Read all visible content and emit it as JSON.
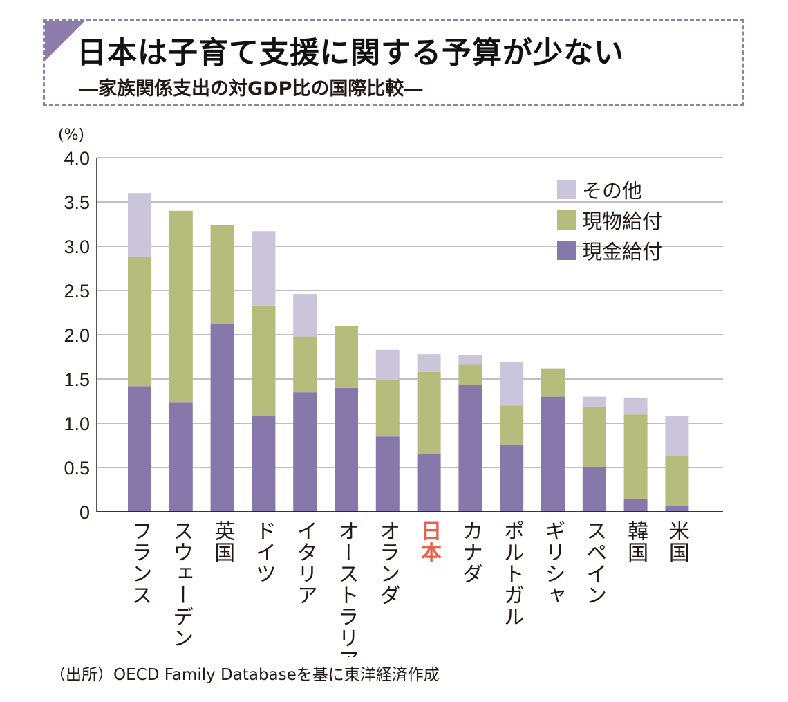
{
  "header": {
    "title": "日本は子育て支援に関する予算が少ない",
    "subtitle": "―家族関係支出の対GDP比の国際比較―"
  },
  "source": "（出所）OECD Family Databaseを基に東洋経済作成",
  "colors": {
    "cash": "#8678ab",
    "in_kind": "#b6bc7b",
    "other": "#cbc5dc",
    "highlight": "#e8604c",
    "grid": "#9a9a9a",
    "frame": "#8f80aa"
  },
  "chart_data": {
    "type": "bar",
    "stacked": true,
    "title": "日本は子育て支援に関する予算が少ない",
    "subtitle": "―家族関係支出の対GDP比の国際比較―",
    "y_unit": "(%)",
    "ylim": [
      0,
      4.0
    ],
    "yticks": [
      "4.0",
      "3.5",
      "3.0",
      "2.5",
      "2.0",
      "1.5",
      "1.0",
      "0.5",
      "0"
    ],
    "ytick_values": [
      4.0,
      3.5,
      3.0,
      2.5,
      2.0,
      1.5,
      1.0,
      0.5,
      0
    ],
    "categories": [
      "フランス",
      "スウェーデン",
      "英国",
      "ドイツ",
      "イタリア",
      "オーストラリア",
      "オランダ",
      "日本",
      "カナダ",
      "ポルトガル",
      "ギリシャ",
      "スペイン",
      "韓国",
      "米国"
    ],
    "highlight_category": "日本",
    "legend_position": "top-right",
    "series": [
      {
        "name": "現金給付",
        "color_key": "cash",
        "values": [
          1.42,
          1.24,
          2.12,
          1.08,
          1.35,
          1.4,
          0.85,
          0.65,
          1.43,
          0.76,
          1.3,
          0.51,
          0.15,
          0.07
        ]
      },
      {
        "name": "現物給付",
        "color_key": "in_kind",
        "values": [
          1.46,
          2.16,
          1.12,
          1.25,
          0.63,
          0.7,
          0.64,
          0.93,
          0.23,
          0.44,
          0.32,
          0.68,
          0.95,
          0.56
        ]
      },
      {
        "name": "その他",
        "color_key": "other",
        "values": [
          0.72,
          0.0,
          0.0,
          0.84,
          0.48,
          0.0,
          0.34,
          0.2,
          0.11,
          0.49,
          0.0,
          0.11,
          0.19,
          0.45
        ]
      }
    ],
    "legend": [
      "その他",
      "現物給付",
      "現金給付"
    ]
  }
}
